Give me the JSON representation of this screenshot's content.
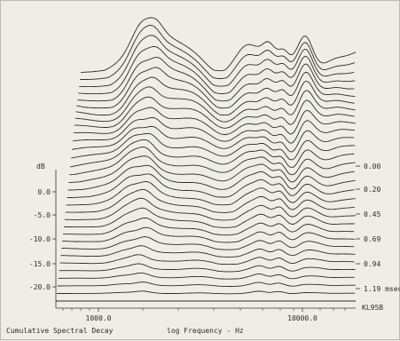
{
  "chart_data": {
    "type": "line",
    "title": "Cumulative Spectral Decay",
    "xlabel": "log Frequency - Hz",
    "ylabel": "dB",
    "x_ticks": [
      "1000.0",
      "10000.0"
    ],
    "y_ticks": [
      "0.0",
      "-5.0",
      "-10.0",
      "-15.0",
      "-20.0"
    ],
    "time_ticks": [
      "0.00",
      "0.20",
      "0.45",
      "0.69",
      "0.94",
      "1.19 msec"
    ],
    "corner_label": "KL95B",
    "slices": 32
  }
}
